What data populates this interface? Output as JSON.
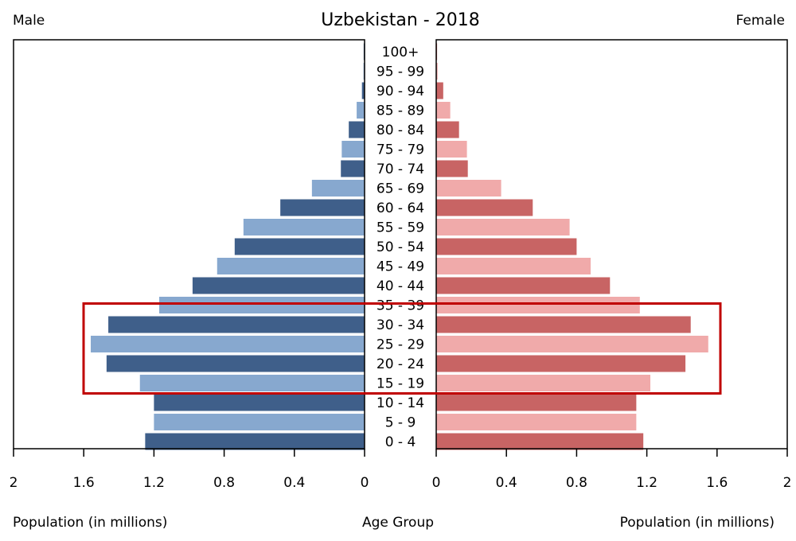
{
  "chart_data": {
    "type": "bar",
    "title": "Uzbekistan - 2018",
    "left_label": "Male",
    "right_label": "Female",
    "xlabel_left": "Population (in millions)",
    "xlabel_center": "Age Group",
    "xlabel_right": "Population (in millions)",
    "categories": [
      "100+",
      "95 - 99",
      "90 - 94",
      "85 - 89",
      "80 - 84",
      "75 - 79",
      "70 - 74",
      "65 - 69",
      "60 - 64",
      "55 - 59",
      "50 - 54",
      "45 - 49",
      "40 - 44",
      "35 - 39",
      "30 - 34",
      "25 - 29",
      "20 - 24",
      "15 - 19",
      "10 - 14",
      "5 - 9",
      "0 - 4"
    ],
    "series": [
      {
        "name": "Male",
        "values": [
          0.005,
          0.006,
          0.015,
          0.045,
          0.09,
          0.13,
          0.135,
          0.3,
          0.48,
          0.69,
          0.74,
          0.84,
          0.98,
          1.17,
          1.46,
          1.56,
          1.47,
          1.28,
          1.2,
          1.2,
          1.25
        ]
      },
      {
        "name": "Female",
        "values": [
          0.005,
          0.008,
          0.04,
          0.08,
          0.13,
          0.175,
          0.18,
          0.37,
          0.55,
          0.76,
          0.8,
          0.88,
          0.99,
          1.16,
          1.45,
          1.55,
          1.42,
          1.22,
          1.14,
          1.14,
          1.18
        ]
      }
    ],
    "xlim": [
      0,
      2
    ],
    "tick_labels": [
      "2",
      "1.6",
      "1.2",
      "0.8",
      "0.4",
      "0"
    ],
    "highlighted_categories": [
      "30 - 34",
      "25 - 29",
      "20 - 24",
      "15 - 19"
    ],
    "colors": {
      "male_dark": "#3f5f8a",
      "male_light": "#87a8cf",
      "female_dark": "#c86464",
      "female_light": "#f0aaaa",
      "highlight": "#c00000"
    }
  }
}
